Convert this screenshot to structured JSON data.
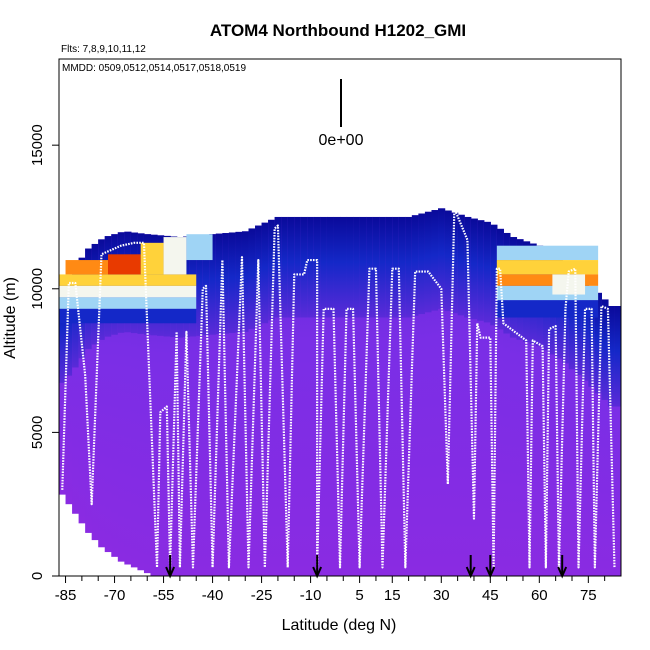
{
  "chart_data": {
    "type": "heatmap",
    "title": "ATOM4 Northbound H1202_GMI",
    "flights_label": "Flts: 7,8,9,10,11,12",
    "dates_label": "MMDD: 0509,0512,0514,0517,0518,0519",
    "scale_label": "0e+00",
    "xlabel": "Latitude (deg N)",
    "ylabel": "Altitude (m)",
    "xlim": [
      -87,
      85
    ],
    "ylim": [
      0,
      18000
    ],
    "x_ticks": [
      -85,
      -70,
      -55,
      -40,
      -25,
      -10,
      5,
      15,
      30,
      45,
      60,
      75
    ],
    "x_tick_labels": [
      "-85",
      "-70",
      "-55",
      "-40",
      "-25",
      "-10",
      "5",
      "15",
      "30",
      "45",
      "60",
      "75"
    ],
    "x_minor_ticks": [
      -80,
      -75,
      -65,
      -60,
      -50,
      -45,
      -35,
      -30,
      -20,
      -15,
      -5,
      0,
      10,
      20,
      25,
      35,
      40,
      50,
      55,
      65,
      70,
      80
    ],
    "y_ticks": [
      0,
      5000,
      10000,
      15000
    ],
    "y_tick_labels": [
      "0",
      "5000",
      "10000",
      "15000"
    ],
    "arrow_latitudes": [
      -53,
      -8,
      39,
      45,
      67
    ],
    "column_tops_m": [
      [
        -87,
        10100
      ],
      [
        -83,
        10600
      ],
      [
        -78,
        11400
      ],
      [
        -73,
        11800
      ],
      [
        -67,
        12000
      ],
      [
        -60,
        11900
      ],
      [
        -50,
        11800
      ],
      [
        -40,
        11900
      ],
      [
        -30,
        12000
      ],
      [
        -20,
        12500
      ],
      [
        -10,
        12500
      ],
      [
        0,
        12500
      ],
      [
        10,
        12500
      ],
      [
        20,
        12500
      ],
      [
        30,
        12800
      ],
      [
        38,
        12500
      ],
      [
        45,
        12300
      ],
      [
        52,
        11800
      ],
      [
        60,
        11500
      ],
      [
        67,
        11000
      ],
      [
        75,
        10200
      ],
      [
        82,
        9400
      ]
    ],
    "column_bottoms_m": [
      [
        -87,
        3000
      ],
      [
        -84,
        2500
      ],
      [
        -81,
        2000
      ],
      [
        -78,
        1500
      ],
      [
        -74,
        1000
      ],
      [
        -68,
        500
      ],
      [
        -58,
        0
      ],
      [
        82,
        0
      ]
    ],
    "legend_colors": {
      "background_field": "#8a2be2",
      "lower_gradient": "#6a2ee0",
      "mid_blue": "#1428c8",
      "dark_blue": "#0a0a9a",
      "light_blue": "#9fd4f5",
      "pale": "#f4f6ee",
      "yellow": "#ffd23a",
      "orange": "#ff8a14",
      "red": "#e83a00",
      "flight_track": "#ffffff"
    },
    "flight_track_profiles": [
      [
        -86,
        3000
      ],
      [
        -84,
        10200
      ],
      [
        -82,
        10200
      ],
      [
        -79,
        7000
      ],
      [
        -77,
        2500
      ],
      [
        -74,
        11200
      ],
      [
        -68,
        11500
      ],
      [
        -64,
        11600
      ],
      [
        -61,
        11600
      ],
      [
        -57,
        300
      ],
      [
        -56,
        5700
      ],
      [
        -54,
        5900
      ],
      [
        -53,
        300
      ],
      [
        -51,
        8500
      ],
      [
        -50,
        300
      ],
      [
        -48,
        8500
      ],
      [
        -46,
        300
      ],
      [
        -43,
        10000
      ],
      [
        -42,
        10100
      ],
      [
        -40,
        300
      ],
      [
        -37,
        11000
      ],
      [
        -35,
        300
      ],
      [
        -31,
        11100
      ],
      [
        -29,
        300
      ],
      [
        -26,
        11000
      ],
      [
        -24,
        300
      ],
      [
        -21,
        12100
      ],
      [
        -20,
        12200
      ],
      [
        -17,
        300
      ],
      [
        -15,
        10500
      ],
      [
        -12,
        10500
      ],
      [
        -11,
        11000
      ],
      [
        -8,
        11000
      ],
      [
        -8,
        300
      ],
      [
        -6,
        9300
      ],
      [
        -3,
        9300
      ],
      [
        -1,
        300
      ],
      [
        1,
        9300
      ],
      [
        3,
        9300
      ],
      [
        5,
        300
      ],
      [
        8,
        10700
      ],
      [
        10,
        10700
      ],
      [
        12,
        300
      ],
      [
        15,
        10700
      ],
      [
        17,
        10700
      ],
      [
        19,
        300
      ],
      [
        22,
        10600
      ],
      [
        24,
        10600
      ],
      [
        26,
        10600
      ],
      [
        30,
        10000
      ],
      [
        32,
        3200
      ],
      [
        34,
        12800
      ],
      [
        38,
        11700
      ],
      [
        40,
        2000
      ],
      [
        41,
        8800
      ],
      [
        42,
        8300
      ],
      [
        45,
        8300
      ],
      [
        46,
        300
      ],
      [
        47,
        10700
      ],
      [
        48,
        10700
      ],
      [
        49,
        8800
      ],
      [
        56,
        8200
      ],
      [
        57,
        300
      ],
      [
        58,
        8200
      ],
      [
        61,
        8000
      ],
      [
        62,
        300
      ],
      [
        63,
        8600
      ],
      [
        65,
        8700
      ],
      [
        66,
        300
      ],
      [
        68,
        9300
      ],
      [
        69,
        10600
      ],
      [
        71,
        10700
      ],
      [
        72,
        300
      ],
      [
        74,
        9300
      ],
      [
        76,
        9300
      ],
      [
        77,
        300
      ],
      [
        79,
        9400
      ],
      [
        81,
        9300
      ],
      [
        83,
        300
      ]
    ]
  }
}
